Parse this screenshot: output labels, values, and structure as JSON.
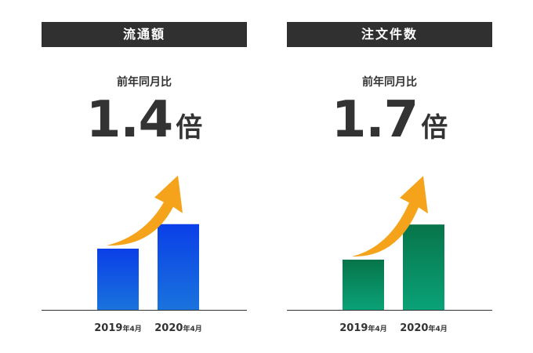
{
  "chart_data": [
    {
      "type": "bar",
      "title": "流通額",
      "yoy_label": "前年同月比",
      "yoy_value": "1.4",
      "yoy_unit": "倍",
      "categories": [
        {
          "year": "2019",
          "suffix": "年4月"
        },
        {
          "year": "2020",
          "suffix": "年4月"
        }
      ],
      "values": [
        1.0,
        1.4
      ],
      "ylim": [
        0,
        2.05
      ],
      "colors": {
        "bar_top": "#0a3fe8",
        "bar_bottom": "#1a73dd",
        "arrow": "#f5a31a"
      }
    },
    {
      "type": "bar",
      "title": "注文件数",
      "yoy_label": "前年同月比",
      "yoy_value": "1.7",
      "yoy_unit": "倍",
      "categories": [
        {
          "year": "2019",
          "suffix": "年4月"
        },
        {
          "year": "2020",
          "suffix": "年4月"
        }
      ],
      "values": [
        1.0,
        1.7
      ],
      "ylim": [
        0,
        2.5
      ],
      "colors": {
        "bar_top": "#07744a",
        "bar_bottom": "#0aa277",
        "arrow": "#f5a31a"
      }
    }
  ]
}
